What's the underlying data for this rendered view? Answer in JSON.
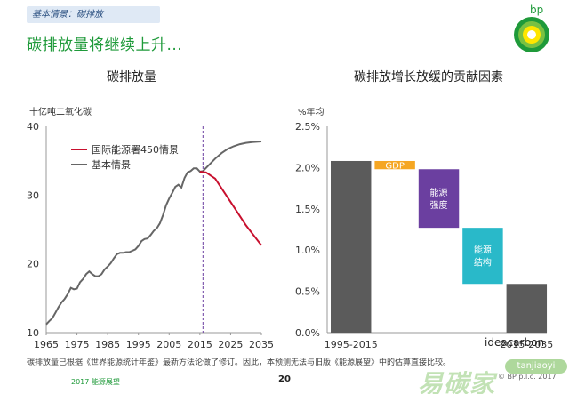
{
  "banner": "基本情景：碳排放",
  "headline": "碳排放量将继续上升...",
  "logo_text": "bp",
  "colors": {
    "green": "#1f9a3a",
    "red": "#c8102e",
    "gray": "#666666",
    "yellow": "#f5a623",
    "purple": "#6b3fa0",
    "teal": "#29b9c9",
    "dark": "#5b5b5b"
  },
  "chart_data": [
    {
      "type": "line",
      "title": "碳排放量",
      "ylabel": "十亿吨二氧化碳",
      "xlim": [
        1965,
        2035
      ],
      "ylim": [
        10,
        40
      ],
      "x_ticks": [
        1965,
        1975,
        1985,
        1995,
        2005,
        2015,
        2025,
        2035
      ],
      "y_ticks": [
        10,
        20,
        30,
        40
      ],
      "grid": false,
      "legend_position": "top-left",
      "divider_year": 2016,
      "series": [
        {
          "name": "基本情景",
          "color": "#666666",
          "x": [
            1965,
            1966,
            1967,
            1968,
            1969,
            1970,
            1971,
            1972,
            1973,
            1974,
            1975,
            1976,
            1977,
            1978,
            1979,
            1980,
            1981,
            1982,
            1983,
            1984,
            1985,
            1986,
            1987,
            1988,
            1989,
            1990,
            1991,
            1992,
            1993,
            1994,
            1995,
            1996,
            1997,
            1998,
            1999,
            2000,
            2001,
            2002,
            2003,
            2004,
            2005,
            2006,
            2007,
            2008,
            2009,
            2010,
            2011,
            2012,
            2013,
            2014,
            2015,
            2016,
            2018,
            2020,
            2022,
            2024,
            2026,
            2028,
            2030,
            2032,
            2035
          ],
          "y": [
            11.2,
            11.7,
            12.1,
            12.9,
            13.7,
            14.4,
            14.9,
            15.6,
            16.5,
            16.3,
            16.4,
            17.3,
            17.8,
            18.5,
            18.9,
            18.5,
            18.2,
            18.2,
            18.5,
            19.2,
            19.6,
            20.1,
            20.8,
            21.4,
            21.6,
            21.6,
            21.7,
            21.7,
            21.9,
            22.1,
            22.6,
            23.3,
            23.6,
            23.7,
            24.2,
            24.8,
            25.2,
            25.9,
            27.1,
            28.5,
            29.5,
            30.3,
            31.2,
            31.5,
            31.1,
            32.5,
            33.3,
            33.5,
            33.9,
            33.9,
            33.4,
            33.5,
            34.4,
            35.3,
            36.1,
            36.7,
            37.1,
            37.4,
            37.6,
            37.7,
            37.8
          ]
        },
        {
          "name": "国际能源署450情景",
          "color": "#c8102e",
          "x": [
            2015,
            2017,
            2020,
            2025,
            2030,
            2035
          ],
          "y": [
            33.4,
            33.3,
            32.4,
            29.0,
            25.6,
            22.7
          ]
        }
      ]
    },
    {
      "type": "bar",
      "subtype": "waterfall",
      "title": "碳排放增长放缓的贡献因素",
      "ylabel": "%年均",
      "ylim": [
        0,
        2.5
      ],
      "y_ticks": [
        "0.0%",
        "0.5%",
        "1.0%",
        "1.5%",
        "2.0%",
        "2.5%"
      ],
      "y_tick_values": [
        0,
        0.5,
        1.0,
        1.5,
        2.0,
        2.5
      ],
      "grid": false,
      "bars": [
        {
          "label": "1995-2015",
          "bottom": 0,
          "top": 2.08,
          "color": "#5b5b5b",
          "category_label": "1995-2015"
        },
        {
          "label": "GDP",
          "bottom": 1.98,
          "top": 2.08,
          "color": "#f5a623",
          "category_label": ""
        },
        {
          "label": "能源强度",
          "bottom": 1.27,
          "top": 1.98,
          "color": "#6b3fa0",
          "category_label": ""
        },
        {
          "label": "能源结构",
          "bottom": 0.59,
          "top": 1.27,
          "color": "#29b9c9",
          "category_label": ""
        },
        {
          "label": "2015-2035",
          "bottom": 0,
          "top": 0.59,
          "color": "#5b5b5b",
          "category_label": "2015-2035"
        }
      ]
    }
  ],
  "footnote": "碳排放量已根据《世界能源统计年鉴》最新方法论做了修订。因此，本预测无法与旧版《能源展望》中的估算直接比较。",
  "footer_left": "2017 能源展望",
  "page_number": "20",
  "watermark": {
    "logo_text": "易碳家",
    "badge": "tanjiaoyi",
    "ide": "ideacarbon",
    "bp": "© BP p.l.c. 2017"
  }
}
